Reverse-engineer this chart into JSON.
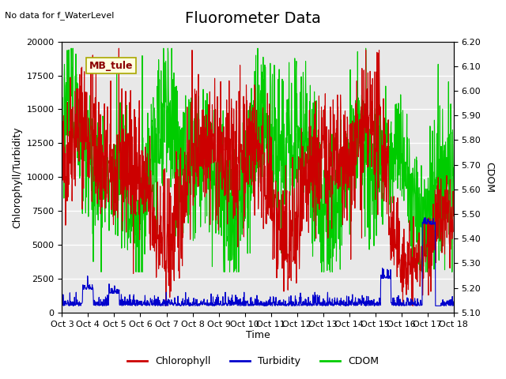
{
  "title": "Fluorometer Data",
  "top_left_text": "No data for f_WaterLevel",
  "station_label": "MB_tule",
  "xlabel": "Time",
  "ylabel_left": "Chlorophyll/Turbidity",
  "ylabel_right": "CDOM",
  "xlim_days": [
    0,
    15
  ],
  "ylim_left": [
    0,
    20000
  ],
  "ylim_right": [
    5.1,
    6.2
  ],
  "x_tick_labels": [
    "Oct 3",
    "Oct 4",
    "Oct 5",
    "Oct 6",
    "Oct 7",
    "Oct 8",
    "Oct 9",
    "Oct 10",
    "Oct 11",
    "Oct 12",
    "Oct 13",
    "Oct 14",
    "Oct 15",
    "Oct 16",
    "Oct 17",
    "Oct 18"
  ],
  "background_color": "#ffffff",
  "plot_bg_color": "#e8e8e8",
  "grid_color": "#ffffff",
  "chlorophyll_color": "#cc0000",
  "turbidity_color": "#0000cc",
  "cdom_color": "#00cc00",
  "linewidth": 0.8,
  "title_fontsize": 14,
  "label_fontsize": 9,
  "tick_fontsize": 8,
  "legend_fontsize": 9,
  "right_ticks": [
    5.1,
    5.2,
    5.3,
    5.4,
    5.5,
    5.6,
    5.7,
    5.8,
    5.9,
    6.0,
    6.1,
    6.2
  ]
}
